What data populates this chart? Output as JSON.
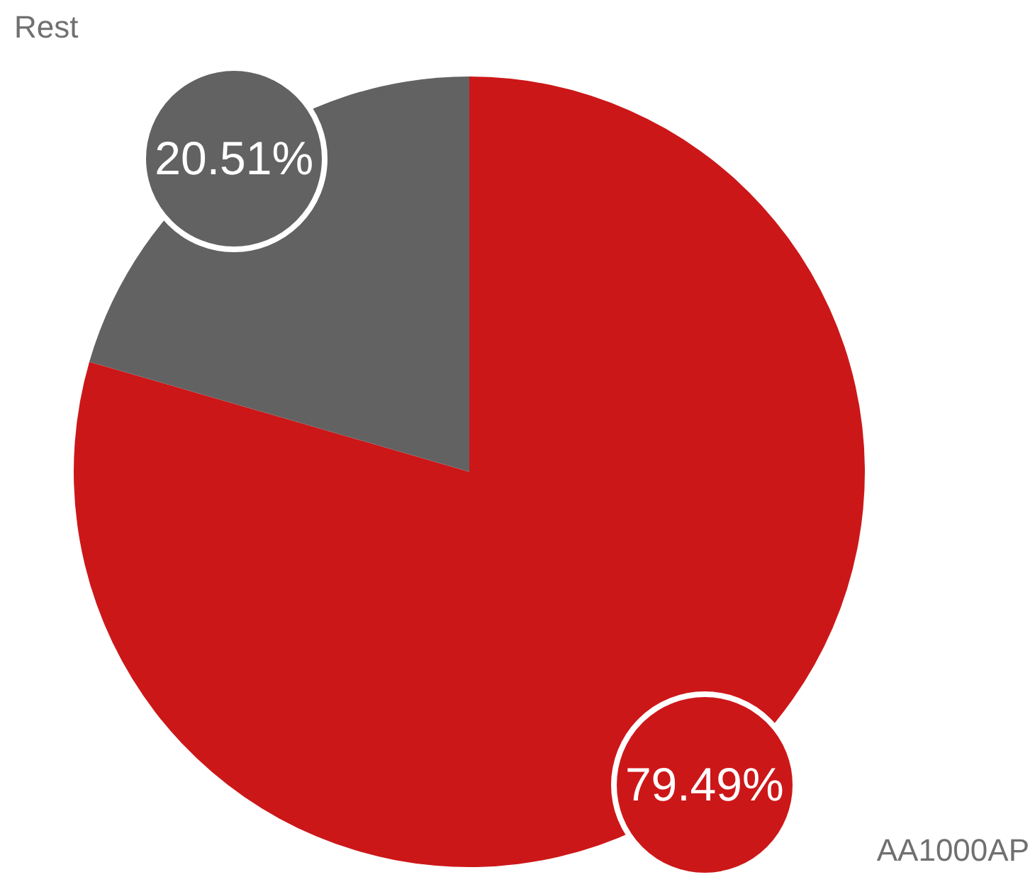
{
  "chart_data": {
    "type": "pie",
    "categories": [
      "AA1000AP",
      "Rest"
    ],
    "values": [
      79.49,
      20.51
    ],
    "colors": [
      "#cc1719",
      "#626262"
    ],
    "value_labels": [
      "79.49%",
      "20.51%"
    ],
    "legend": false
  }
}
